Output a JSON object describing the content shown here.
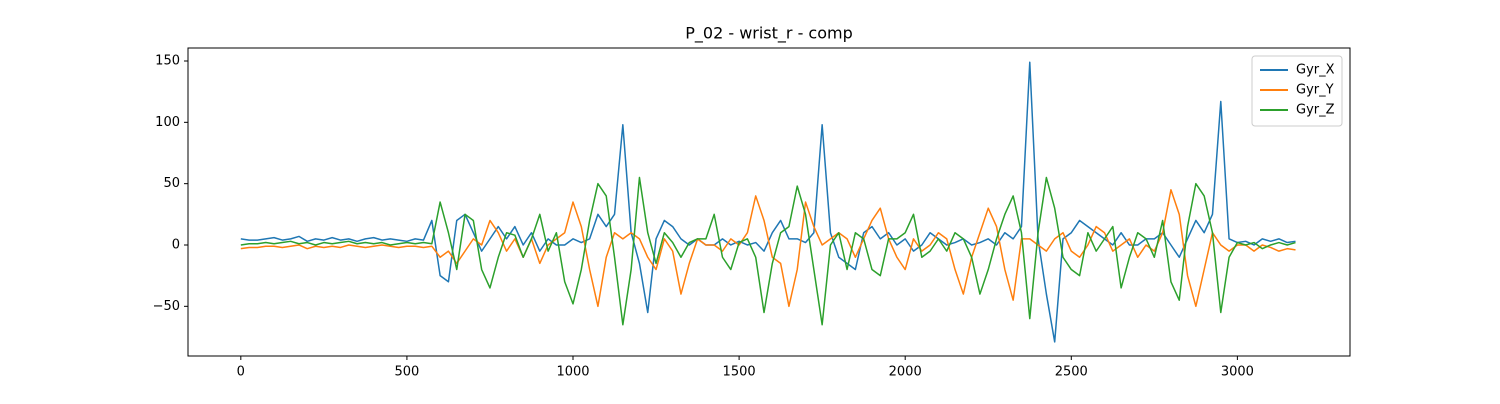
{
  "chart_data": {
    "type": "line",
    "title": "P_02 - wrist_r - comp",
    "x": [
      0,
      25,
      50,
      75,
      100,
      125,
      150,
      175,
      200,
      225,
      250,
      275,
      300,
      325,
      350,
      375,
      400,
      425,
      450,
      475,
      500,
      525,
      550,
      575,
      600,
      625,
      650,
      675,
      700,
      725,
      750,
      775,
      800,
      825,
      850,
      875,
      900,
      925,
      950,
      975,
      1000,
      1025,
      1050,
      1075,
      1100,
      1125,
      1150,
      1175,
      1200,
      1225,
      1250,
      1275,
      1300,
      1325,
      1350,
      1375,
      1400,
      1425,
      1450,
      1475,
      1500,
      1525,
      1550,
      1575,
      1600,
      1625,
      1650,
      1675,
      1700,
      1725,
      1750,
      1775,
      1800,
      1825,
      1850,
      1875,
      1900,
      1925,
      1950,
      1975,
      2000,
      2025,
      2050,
      2075,
      2100,
      2125,
      2150,
      2175,
      2200,
      2225,
      2250,
      2275,
      2300,
      2325,
      2350,
      2375,
      2400,
      2425,
      2450,
      2475,
      2500,
      2525,
      2550,
      2575,
      2600,
      2625,
      2650,
      2675,
      2700,
      2725,
      2750,
      2775,
      2800,
      2825,
      2850,
      2875,
      2900,
      2925,
      2950,
      2975,
      3000,
      3025,
      3050,
      3075,
      3100,
      3125,
      3150,
      3175
    ],
    "series": [
      {
        "name": "Gyr_X",
        "color": "#1f77b4",
        "values": [
          5,
          4,
          4,
          5,
          6,
          4,
          5,
          7,
          3,
          5,
          4,
          6,
          4,
          5,
          3,
          5,
          6,
          4,
          5,
          4,
          3,
          5,
          4,
          20,
          -25,
          -30,
          20,
          25,
          10,
          -5,
          5,
          15,
          5,
          15,
          0,
          10,
          -5,
          5,
          0,
          0,
          5,
          2,
          5,
          25,
          15,
          25,
          98,
          10,
          -15,
          -55,
          5,
          20,
          15,
          5,
          0,
          5,
          0,
          0,
          5,
          0,
          3,
          0,
          2,
          -5,
          10,
          20,
          5,
          5,
          2,
          10,
          98,
          10,
          -10,
          -15,
          -20,
          10,
          15,
          5,
          10,
          0,
          5,
          -5,
          0,
          10,
          5,
          0,
          2,
          5,
          0,
          2,
          5,
          0,
          10,
          5,
          15,
          149,
          5,
          -40,
          -79,
          5,
          10,
          20,
          15,
          10,
          5,
          0,
          10,
          0,
          0,
          5,
          5,
          10,
          0,
          -10,
          5,
          20,
          10,
          25,
          117,
          5,
          2,
          3,
          0,
          5,
          3,
          5,
          2,
          3
        ]
      },
      {
        "name": "Gyr_Y",
        "color": "#ff7f0e",
        "values": [
          -3,
          -2,
          -2,
          -1,
          -1,
          -2,
          -1,
          0,
          -3,
          -1,
          -2,
          -1,
          -2,
          0,
          -1,
          -2,
          -1,
          0,
          -1,
          -2,
          -1,
          -1,
          -2,
          -1,
          -10,
          -5,
          -15,
          -5,
          5,
          0,
          20,
          10,
          -5,
          5,
          -10,
          5,
          -15,
          0,
          5,
          10,
          35,
          15,
          -20,
          -50,
          -10,
          10,
          5,
          10,
          5,
          -10,
          -20,
          5,
          -5,
          -40,
          -15,
          5,
          0,
          0,
          -5,
          5,
          0,
          10,
          40,
          20,
          -10,
          -15,
          -50,
          -20,
          35,
          15,
          0,
          5,
          10,
          5,
          -10,
          5,
          20,
          30,
          5,
          -10,
          -20,
          5,
          -5,
          0,
          10,
          5,
          -20,
          -40,
          -10,
          10,
          30,
          15,
          -20,
          -45,
          5,
          5,
          0,
          -5,
          5,
          10,
          -5,
          -10,
          0,
          15,
          10,
          -5,
          0,
          5,
          -10,
          0,
          -5,
          10,
          45,
          25,
          -25,
          -50,
          -20,
          10,
          0,
          -5,
          0,
          0,
          -5,
          0,
          -2,
          -5,
          -3,
          -4
        ]
      },
      {
        "name": "Gyr_Z",
        "color": "#2ca02c",
        "values": [
          0,
          1,
          1,
          2,
          1,
          2,
          3,
          1,
          2,
          0,
          2,
          1,
          2,
          3,
          1,
          2,
          1,
          2,
          0,
          1,
          2,
          1,
          2,
          1,
          35,
          10,
          -20,
          25,
          20,
          -20,
          -35,
          -10,
          10,
          8,
          -10,
          5,
          25,
          -5,
          10,
          -30,
          -48,
          -20,
          20,
          50,
          40,
          -10,
          -65,
          -20,
          55,
          10,
          -15,
          10,
          2,
          -10,
          2,
          5,
          5,
          25,
          -10,
          -20,
          2,
          5,
          -10,
          -55,
          -15,
          10,
          15,
          48,
          25,
          -20,
          -65,
          0,
          10,
          -20,
          10,
          5,
          -20,
          -25,
          5,
          5,
          10,
          25,
          -10,
          -5,
          5,
          -5,
          10,
          5,
          -10,
          -40,
          -20,
          5,
          25,
          40,
          10,
          -60,
          10,
          55,
          30,
          -10,
          -20,
          -25,
          10,
          -5,
          5,
          15,
          -35,
          -10,
          10,
          5,
          -10,
          20,
          -30,
          -45,
          15,
          50,
          40,
          10,
          -55,
          -10,
          2,
          0,
          2,
          -3,
          0,
          2,
          0,
          2
        ]
      }
    ],
    "xlim": [
      -159,
      3339
    ],
    "ylim": [
      -90.5,
      160.6
    ],
    "xticks": [
      0,
      500,
      1000,
      1500,
      2000,
      2500,
      3000
    ],
    "yticks": [
      {
        "value": -50,
        "label": "−50"
      },
      0,
      50,
      100,
      150
    ],
    "legend": "upper right"
  }
}
